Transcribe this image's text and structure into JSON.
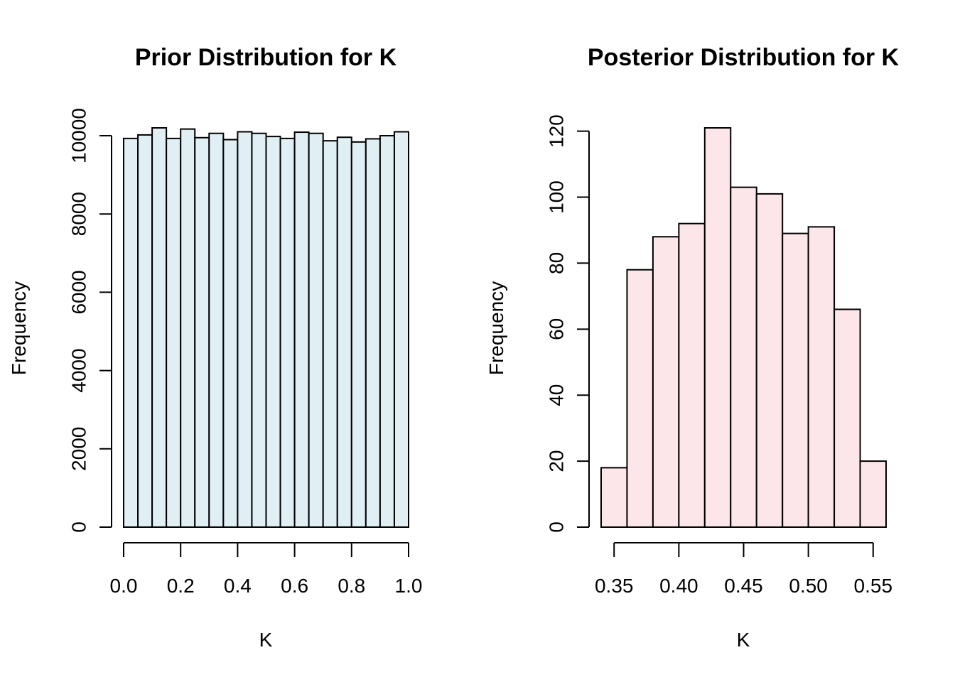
{
  "chart_data": [
    {
      "type": "bar",
      "title": "Prior Distribution for K",
      "xlabel": "K",
      "ylabel": "Frequency",
      "bar_color": "#e0eff4",
      "bin_edges": [
        0.0,
        0.05,
        0.1,
        0.15,
        0.2,
        0.25,
        0.3,
        0.35,
        0.4,
        0.45,
        0.5,
        0.55,
        0.6,
        0.65,
        0.7,
        0.75,
        0.8,
        0.85,
        0.9,
        0.95,
        1.0
      ],
      "values": [
        9930,
        10020,
        10200,
        9930,
        10170,
        9950,
        10060,
        9900,
        10100,
        10060,
        9980,
        9930,
        10090,
        10060,
        9870,
        9960,
        9840,
        9920,
        10000,
        10100
      ],
      "xlim": [
        0.0,
        1.0
      ],
      "ylim": [
        0,
        10200
      ],
      "x_ticks": [
        0.0,
        0.2,
        0.4,
        0.6,
        0.8,
        1.0
      ],
      "x_tick_labels": [
        "0.0",
        "0.2",
        "0.4",
        "0.6",
        "0.8",
        "1.0"
      ],
      "y_ticks": [
        0,
        2000,
        4000,
        6000,
        8000,
        10000
      ],
      "y_tick_labels": [
        "0",
        "2000",
        "4000",
        "6000",
        "8000",
        "10000"
      ]
    },
    {
      "type": "bar",
      "title": "Posterior Distribution for K",
      "xlabel": "K",
      "ylabel": "Frequency",
      "bar_color": "#fde6ea",
      "bin_edges": [
        0.34,
        0.36,
        0.38,
        0.4,
        0.42,
        0.44,
        0.46,
        0.48,
        0.5,
        0.52,
        0.54,
        0.56
      ],
      "values": [
        18,
        78,
        88,
        92,
        121,
        103,
        101,
        89,
        91,
        66,
        20
      ],
      "xlim": [
        0.34,
        0.56
      ],
      "ylim": [
        0,
        121
      ],
      "x_ticks": [
        0.35,
        0.4,
        0.45,
        0.5,
        0.55
      ],
      "x_tick_labels": [
        "0.35",
        "0.40",
        "0.45",
        "0.50",
        "0.55"
      ],
      "y_ticks": [
        0,
        20,
        40,
        60,
        80,
        100,
        120
      ],
      "y_tick_labels": [
        "0",
        "20",
        "40",
        "60",
        "80",
        "100",
        "120"
      ]
    }
  ]
}
